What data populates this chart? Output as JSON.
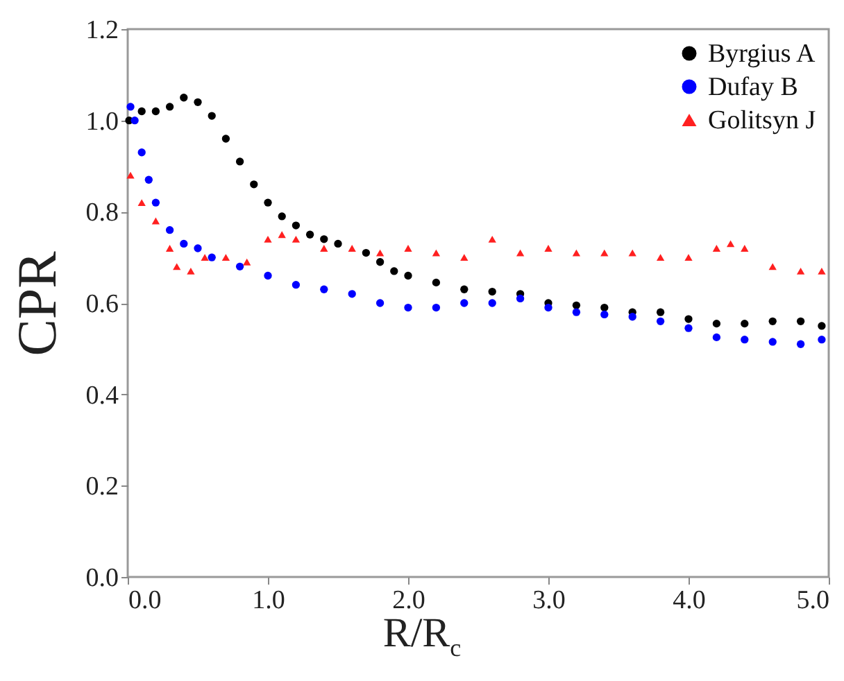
{
  "chart_data": {
    "type": "scatter",
    "xlabel": "R/R$_{c}$",
    "ylabel": "CPR",
    "legend": "top right",
    "grid": false,
    "xlim": [
      0,
      5
    ],
    "ylim": [
      0,
      1.2
    ],
    "xticks": [
      {
        "value": 0,
        "label": "0.0"
      },
      {
        "value": 1,
        "label": "1.0"
      },
      {
        "value": 2,
        "label": "2.0"
      },
      {
        "value": 3,
        "label": "3.0"
      },
      {
        "value": 4,
        "label": "4.0"
      },
      {
        "value": 5,
        "label": "5.0"
      }
    ],
    "yticks": [
      {
        "value": 0,
        "label": "0.0"
      },
      {
        "value": 0.2,
        "label": "0.2"
      },
      {
        "value": 0.4,
        "label": "0.4"
      },
      {
        "value": 0.6,
        "label": "0.6"
      },
      {
        "value": 0.8,
        "label": "0.8"
      },
      {
        "value": 1,
        "label": "1.0"
      },
      {
        "value": 1.2,
        "label": "1.2"
      }
    ],
    "series": [
      {
        "name": "Byrgius A",
        "color": "#000000",
        "marker": "circle",
        "x": [
          0.01,
          0.1,
          0.2,
          0.3,
          0.4,
          0.5,
          0.6,
          0.7,
          0.8,
          0.9,
          1.0,
          1.1,
          1.2,
          1.3,
          1.4,
          1.5,
          1.7,
          1.8,
          1.9,
          2.0,
          2.2,
          2.4,
          2.6,
          2.8,
          3.0,
          3.2,
          3.4,
          3.6,
          3.8,
          4.0,
          4.2,
          4.4,
          4.6,
          4.8,
          4.95
        ],
        "values": [
          1.0,
          1.02,
          1.02,
          1.03,
          1.05,
          1.04,
          1.01,
          0.96,
          0.91,
          0.86,
          0.82,
          0.79,
          0.77,
          0.75,
          0.74,
          0.73,
          0.71,
          0.69,
          0.67,
          0.66,
          0.645,
          0.63,
          0.625,
          0.62,
          0.6,
          0.595,
          0.59,
          0.58,
          0.58,
          0.565,
          0.555,
          0.555,
          0.56,
          0.56,
          0.55
        ]
      },
      {
        "name": "Dufay B",
        "color": "#0000ff",
        "marker": "circle",
        "x": [
          0.02,
          0.05,
          0.1,
          0.15,
          0.2,
          0.3,
          0.4,
          0.5,
          0.6,
          0.8,
          1.0,
          1.2,
          1.4,
          1.6,
          1.8,
          2.0,
          2.2,
          2.4,
          2.6,
          2.8,
          3.0,
          3.2,
          3.4,
          3.6,
          3.8,
          4.0,
          4.2,
          4.4,
          4.6,
          4.8,
          4.95
        ],
        "values": [
          1.03,
          1.0,
          0.93,
          0.87,
          0.82,
          0.76,
          0.73,
          0.72,
          0.7,
          0.68,
          0.66,
          0.64,
          0.63,
          0.62,
          0.6,
          0.59,
          0.59,
          0.6,
          0.6,
          0.61,
          0.59,
          0.58,
          0.575,
          0.57,
          0.56,
          0.545,
          0.525,
          0.52,
          0.515,
          0.51,
          0.52
        ]
      },
      {
        "name": "Golitsyn J",
        "color": "#ff2020",
        "marker": "triangle",
        "x": [
          0.02,
          0.1,
          0.2,
          0.3,
          0.35,
          0.45,
          0.55,
          0.7,
          0.85,
          1.0,
          1.1,
          1.2,
          1.4,
          1.6,
          1.8,
          2.0,
          2.2,
          2.4,
          2.6,
          2.8,
          3.0,
          3.2,
          3.4,
          3.6,
          3.8,
          4.0,
          4.2,
          4.3,
          4.4,
          4.6,
          4.8,
          4.95
        ],
        "values": [
          0.88,
          0.82,
          0.78,
          0.72,
          0.68,
          0.67,
          0.7,
          0.7,
          0.69,
          0.74,
          0.75,
          0.74,
          0.72,
          0.72,
          0.71,
          0.72,
          0.71,
          0.7,
          0.74,
          0.71,
          0.72,
          0.71,
          0.71,
          0.71,
          0.7,
          0.7,
          0.72,
          0.73,
          0.72,
          0.68,
          0.67,
          0.67
        ]
      }
    ]
  }
}
